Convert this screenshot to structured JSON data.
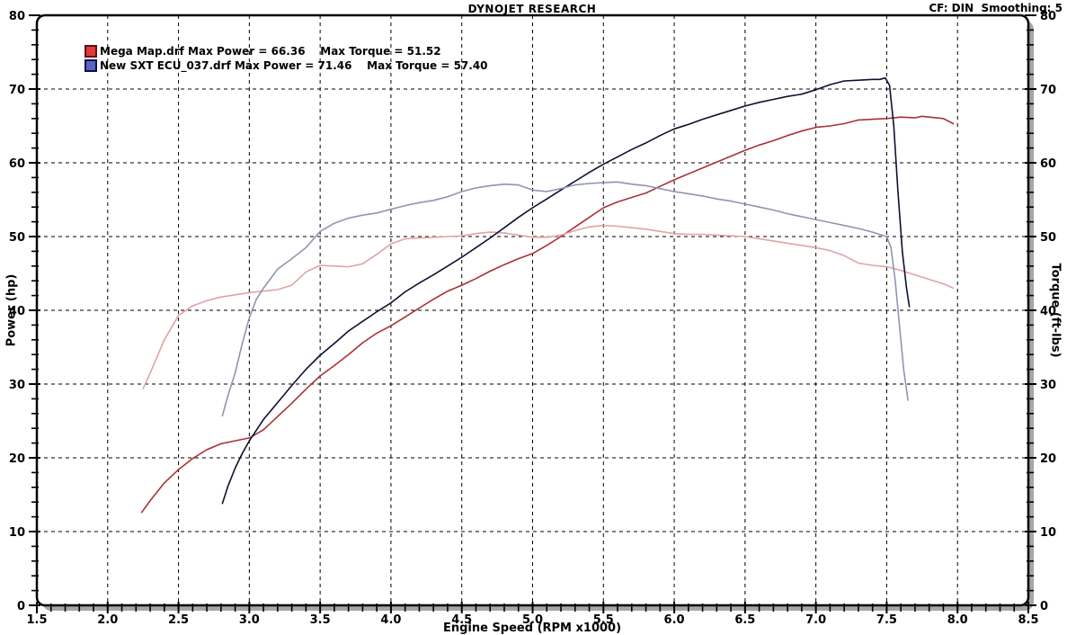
{
  "header": {
    "title": "DYNOJET RESEARCH",
    "cf_smoothing": "CF: DIN  Smoothing: 5"
  },
  "legend": {
    "items": [
      {
        "swatch_fill": "#e23a3a",
        "swatch_border": "#5e0f12",
        "label": "Mega Map.drf Max Power = 66.36    Max Torque = 51.52"
      },
      {
        "swatch_fill": "#5a66c0",
        "swatch_border": "#0e0e44",
        "label": "New SXT ECU_037.drf Max Power = 71.46    Max Torque = 57.40"
      }
    ]
  },
  "chart_data": {
    "type": "line",
    "title": "DYNOJET RESEARCH",
    "xlabel": "Engine Speed (RPM x1000)",
    "ylabel_left": "Power (hp)",
    "ylabel_right": "Torque (ft-lbs)",
    "xlim": [
      1.5,
      8.5
    ],
    "ylim": [
      0,
      80
    ],
    "grid": true,
    "correction_factor": "DIN",
    "smoothing": 5,
    "x_ticks": [
      [
        1.5,
        "1.5"
      ],
      [
        2.0,
        "2.0"
      ],
      [
        2.5,
        "2.5"
      ],
      [
        3.0,
        "3.0"
      ],
      [
        3.5,
        "3.5"
      ],
      [
        4.0,
        "4.0"
      ],
      [
        4.5,
        "4.5"
      ],
      [
        5.0,
        "5.0"
      ],
      [
        5.5,
        "5.5"
      ],
      [
        6.0,
        "6.0"
      ],
      [
        6.5,
        "6.5"
      ],
      [
        7.0,
        "7.0"
      ],
      [
        7.5,
        "7.5"
      ],
      [
        8.0,
        "8.0"
      ],
      [
        8.5,
        "8.5"
      ]
    ],
    "y_ticks": [
      [
        0,
        "0"
      ],
      [
        10,
        "10"
      ],
      [
        20,
        "20"
      ],
      [
        30,
        "30"
      ],
      [
        40,
        "40"
      ],
      [
        50,
        "50"
      ],
      [
        60,
        "60"
      ],
      [
        70,
        "70"
      ],
      [
        80,
        "80"
      ]
    ],
    "x_minor_step": 0.1,
    "y_minor_step": 2,
    "series": [
      {
        "id": "mega-map-power",
        "name": "Mega Map.drf Power (hp)",
        "axis": "left",
        "color": "#a93136",
        "max_value": 66.36,
        "points": [
          [
            2.24,
            12.6
          ],
          [
            2.3,
            14.2
          ],
          [
            2.4,
            16.6
          ],
          [
            2.5,
            18.4
          ],
          [
            2.6,
            19.9
          ],
          [
            2.7,
            21.1
          ],
          [
            2.8,
            21.9
          ],
          [
            2.9,
            22.3
          ],
          [
            3.0,
            22.7
          ],
          [
            3.1,
            23.8
          ],
          [
            3.2,
            25.6
          ],
          [
            3.3,
            27.4
          ],
          [
            3.4,
            29.3
          ],
          [
            3.5,
            31.1
          ],
          [
            3.6,
            32.5
          ],
          [
            3.7,
            34.0
          ],
          [
            3.8,
            35.6
          ],
          [
            3.9,
            36.9
          ],
          [
            4.0,
            37.9
          ],
          [
            4.1,
            39.1
          ],
          [
            4.2,
            40.3
          ],
          [
            4.3,
            41.5
          ],
          [
            4.4,
            42.6
          ],
          [
            4.5,
            43.4
          ],
          [
            4.6,
            44.3
          ],
          [
            4.7,
            45.3
          ],
          [
            4.8,
            46.2
          ],
          [
            4.9,
            47.0
          ],
          [
            5.0,
            47.7
          ],
          [
            5.1,
            48.8
          ],
          [
            5.2,
            50.0
          ],
          [
            5.3,
            51.3
          ],
          [
            5.4,
            52.6
          ],
          [
            5.5,
            53.9
          ],
          [
            5.6,
            54.7
          ],
          [
            5.7,
            55.3
          ],
          [
            5.8,
            55.9
          ],
          [
            5.9,
            56.8
          ],
          [
            6.0,
            57.7
          ],
          [
            6.1,
            58.5
          ],
          [
            6.2,
            59.3
          ],
          [
            6.3,
            60.1
          ],
          [
            6.4,
            60.9
          ],
          [
            6.5,
            61.7
          ],
          [
            6.6,
            62.4
          ],
          [
            6.7,
            63.0
          ],
          [
            6.8,
            63.7
          ],
          [
            6.9,
            64.3
          ],
          [
            7.0,
            64.8
          ],
          [
            7.1,
            65.0
          ],
          [
            7.2,
            65.3
          ],
          [
            7.3,
            65.8
          ],
          [
            7.4,
            65.9
          ],
          [
            7.5,
            66.0
          ],
          [
            7.6,
            66.2
          ],
          [
            7.7,
            66.1
          ],
          [
            7.75,
            66.3
          ],
          [
            7.8,
            66.2
          ],
          [
            7.9,
            66.0
          ],
          [
            7.97,
            65.3
          ]
        ]
      },
      {
        "id": "mega-map-torque",
        "name": "Mega Map.drf Torque (ft-lbs)",
        "axis": "right",
        "color": "#e2a3a6",
        "max_value": 51.52,
        "points": [
          [
            2.25,
            29.4
          ],
          [
            2.3,
            31.5
          ],
          [
            2.4,
            36.0
          ],
          [
            2.5,
            39.3
          ],
          [
            2.6,
            40.6
          ],
          [
            2.7,
            41.3
          ],
          [
            2.8,
            41.8
          ],
          [
            2.9,
            42.1
          ],
          [
            3.0,
            42.4
          ],
          [
            3.1,
            42.6
          ],
          [
            3.2,
            42.8
          ],
          [
            3.3,
            43.4
          ],
          [
            3.4,
            45.2
          ],
          [
            3.5,
            46.1
          ],
          [
            3.6,
            46.0
          ],
          [
            3.7,
            45.9
          ],
          [
            3.8,
            46.3
          ],
          [
            3.9,
            47.6
          ],
          [
            4.0,
            49.0
          ],
          [
            4.1,
            49.7
          ],
          [
            4.2,
            49.8
          ],
          [
            4.3,
            49.9
          ],
          [
            4.4,
            50.0
          ],
          [
            4.5,
            50.1
          ],
          [
            4.6,
            50.4
          ],
          [
            4.7,
            50.6
          ],
          [
            4.8,
            50.5
          ],
          [
            4.9,
            50.2
          ],
          [
            5.0,
            49.9
          ],
          [
            5.1,
            49.9
          ],
          [
            5.2,
            50.2
          ],
          [
            5.3,
            50.8
          ],
          [
            5.4,
            51.3
          ],
          [
            5.5,
            51.5
          ],
          [
            5.6,
            51.4
          ],
          [
            5.7,
            51.2
          ],
          [
            5.8,
            51.0
          ],
          [
            5.9,
            50.7
          ],
          [
            6.0,
            50.4
          ],
          [
            6.1,
            50.3
          ],
          [
            6.2,
            50.3
          ],
          [
            6.3,
            50.2
          ],
          [
            6.4,
            50.1
          ],
          [
            6.5,
            50.0
          ],
          [
            6.6,
            49.7
          ],
          [
            6.7,
            49.4
          ],
          [
            6.8,
            49.1
          ],
          [
            6.9,
            48.8
          ],
          [
            7.0,
            48.5
          ],
          [
            7.1,
            48.1
          ],
          [
            7.2,
            47.4
          ],
          [
            7.3,
            46.4
          ],
          [
            7.4,
            46.1
          ],
          [
            7.5,
            45.9
          ],
          [
            7.6,
            45.4
          ],
          [
            7.7,
            44.8
          ],
          [
            7.8,
            44.2
          ],
          [
            7.9,
            43.6
          ],
          [
            7.97,
            43.0
          ]
        ]
      },
      {
        "id": "sxt-ecu-power",
        "name": "New SXT ECU_037.drf Power (hp)",
        "axis": "left",
        "color": "#0d1030",
        "max_value": 71.46,
        "points": [
          [
            2.81,
            13.8
          ],
          [
            2.85,
            16.2
          ],
          [
            2.9,
            18.6
          ],
          [
            2.95,
            20.6
          ],
          [
            3.0,
            22.3
          ],
          [
            3.1,
            25.2
          ],
          [
            3.2,
            27.5
          ],
          [
            3.3,
            29.8
          ],
          [
            3.4,
            32.0
          ],
          [
            3.5,
            33.9
          ],
          [
            3.6,
            35.5
          ],
          [
            3.7,
            37.2
          ],
          [
            3.8,
            38.5
          ],
          [
            3.9,
            39.8
          ],
          [
            4.0,
            41.0
          ],
          [
            4.1,
            42.5
          ],
          [
            4.2,
            43.7
          ],
          [
            4.3,
            44.8
          ],
          [
            4.4,
            46.0
          ],
          [
            4.5,
            47.2
          ],
          [
            4.6,
            48.5
          ],
          [
            4.7,
            49.8
          ],
          [
            4.8,
            51.2
          ],
          [
            4.9,
            52.6
          ],
          [
            5.0,
            53.9
          ],
          [
            5.1,
            55.1
          ],
          [
            5.2,
            56.3
          ],
          [
            5.3,
            57.5
          ],
          [
            5.4,
            58.7
          ],
          [
            5.5,
            59.8
          ],
          [
            5.6,
            60.8
          ],
          [
            5.7,
            61.8
          ],
          [
            5.8,
            62.7
          ],
          [
            5.9,
            63.7
          ],
          [
            6.0,
            64.6
          ],
          [
            6.1,
            65.2
          ],
          [
            6.2,
            65.9
          ],
          [
            6.3,
            66.5
          ],
          [
            6.4,
            67.1
          ],
          [
            6.5,
            67.7
          ],
          [
            6.6,
            68.2
          ],
          [
            6.7,
            68.6
          ],
          [
            6.8,
            69.0
          ],
          [
            6.9,
            69.3
          ],
          [
            7.0,
            69.9
          ],
          [
            7.1,
            70.6
          ],
          [
            7.2,
            71.1
          ],
          [
            7.3,
            71.2
          ],
          [
            7.4,
            71.3
          ],
          [
            7.45,
            71.3
          ],
          [
            7.49,
            71.5
          ],
          [
            7.52,
            70.5
          ],
          [
            7.55,
            65.0
          ],
          [
            7.58,
            56.0
          ],
          [
            7.61,
            48.0
          ],
          [
            7.64,
            43.0
          ],
          [
            7.66,
            40.5
          ]
        ]
      },
      {
        "id": "sxt-ecu-torque",
        "name": "New SXT ECU_037.drf Torque (ft-lbs)",
        "axis": "right",
        "color": "#8d96af",
        "max_value": 57.4,
        "points": [
          [
            2.81,
            25.7
          ],
          [
            2.85,
            28.5
          ],
          [
            2.9,
            31.5
          ],
          [
            2.95,
            35.5
          ],
          [
            3.0,
            39.0
          ],
          [
            3.05,
            41.5
          ],
          [
            3.1,
            43.0
          ],
          [
            3.2,
            45.6
          ],
          [
            3.3,
            47.0
          ],
          [
            3.4,
            48.5
          ],
          [
            3.5,
            50.7
          ],
          [
            3.6,
            51.8
          ],
          [
            3.7,
            52.5
          ],
          [
            3.8,
            52.9
          ],
          [
            3.9,
            53.2
          ],
          [
            4.0,
            53.7
          ],
          [
            4.1,
            54.2
          ],
          [
            4.2,
            54.6
          ],
          [
            4.3,
            54.9
          ],
          [
            4.4,
            55.4
          ],
          [
            4.5,
            56.1
          ],
          [
            4.6,
            56.6
          ],
          [
            4.7,
            56.9
          ],
          [
            4.8,
            57.1
          ],
          [
            4.9,
            57.0
          ],
          [
            5.0,
            56.3
          ],
          [
            5.1,
            56.1
          ],
          [
            5.2,
            56.5
          ],
          [
            5.3,
            57.0
          ],
          [
            5.4,
            57.2
          ],
          [
            5.5,
            57.3
          ],
          [
            5.6,
            57.4
          ],
          [
            5.7,
            57.1
          ],
          [
            5.8,
            56.9
          ],
          [
            5.9,
            56.5
          ],
          [
            6.0,
            56.1
          ],
          [
            6.1,
            55.8
          ],
          [
            6.2,
            55.5
          ],
          [
            6.3,
            55.1
          ],
          [
            6.4,
            54.8
          ],
          [
            6.5,
            54.4
          ],
          [
            6.6,
            54.0
          ],
          [
            6.7,
            53.6
          ],
          [
            6.8,
            53.1
          ],
          [
            6.9,
            52.7
          ],
          [
            7.0,
            52.3
          ],
          [
            7.1,
            51.9
          ],
          [
            7.2,
            51.5
          ],
          [
            7.3,
            51.1
          ],
          [
            7.4,
            50.6
          ],
          [
            7.5,
            50.0
          ],
          [
            7.53,
            48.5
          ],
          [
            7.56,
            44.0
          ],
          [
            7.59,
            38.0
          ],
          [
            7.62,
            32.0
          ],
          [
            7.65,
            27.8
          ]
        ]
      }
    ]
  }
}
